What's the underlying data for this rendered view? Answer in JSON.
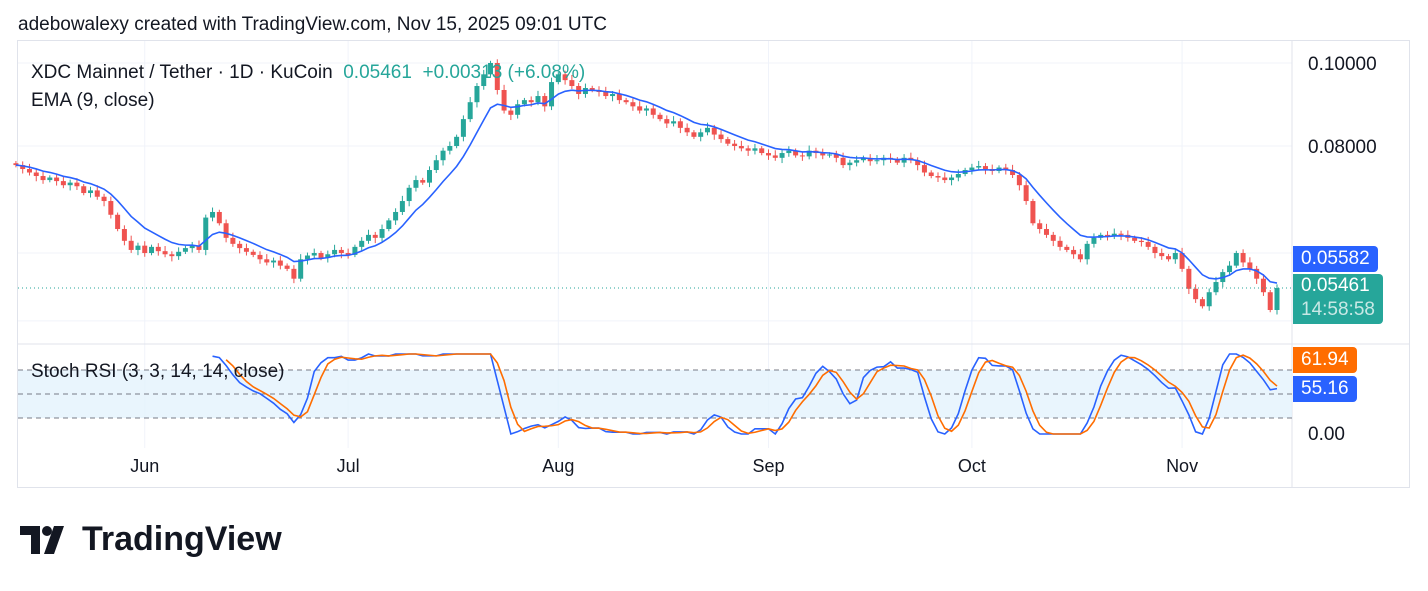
{
  "credit": "adebowalexy created with TradingView.com, Nov 15, 2025 09:01 UTC",
  "legend": {
    "symbol": "XDC Mainnet / Tether · 1D · KuCoin",
    "last": "0.05461",
    "change": "+0.00313 (+6.08%)",
    "ema": "EMA (9, close)",
    "stoch": "Stoch RSI (3, 3, 14, 14, close)"
  },
  "tags": {
    "ema": "0.05582",
    "price": "0.05461",
    "countdown": "14:58:58",
    "k": "61.94",
    "d": "55.16"
  },
  "colors": {
    "up": "#26a69a",
    "down": "#ef5350",
    "ema": "#2962ff",
    "k": "#2962ff",
    "d": "#ff6d00",
    "band": "#e3f2fd"
  },
  "logo": "TradingView",
  "chart_data": {
    "type": "candlestick",
    "start_date": "2025-05-13",
    "interval": "1D",
    "y_scale": "log",
    "price_ticks": [
      "0.10000",
      "0.08000"
    ],
    "stoch_ticks": [
      "0.00"
    ],
    "x_ticks": [
      {
        "label": "Jun",
        "date": "2025-06-01"
      },
      {
        "label": "Jul",
        "date": "2025-07-01"
      },
      {
        "label": "Aug",
        "date": "2025-08-01"
      },
      {
        "label": "Sep",
        "date": "2025-09-01"
      },
      {
        "label": "Oct",
        "date": "2025-10-01"
      },
      {
        "label": "Nov",
        "date": "2025-11-01"
      }
    ],
    "stoch_bands": [
      80,
      50,
      20
    ],
    "closes": [
      0.076,
      0.0752,
      0.0745,
      0.0738,
      0.073,
      0.0735,
      0.0728,
      0.072,
      0.0725,
      0.0718,
      0.0705,
      0.071,
      0.0698,
      0.069,
      0.0665,
      0.064,
      0.062,
      0.0605,
      0.0612,
      0.06,
      0.061,
      0.0603,
      0.0598,
      0.0595,
      0.0602,
      0.0608,
      0.0612,
      0.0605,
      0.066,
      0.067,
      0.065,
      0.0625,
      0.0615,
      0.0608,
      0.0602,
      0.0597,
      0.059,
      0.0585,
      0.0588,
      0.058,
      0.0575,
      0.056,
      0.059,
      0.0596,
      0.06,
      0.0592,
      0.0598,
      0.0605,
      0.06,
      0.0597,
      0.061,
      0.062,
      0.063,
      0.0625,
      0.064,
      0.0655,
      0.067,
      0.069,
      0.0715,
      0.073,
      0.0725,
      0.075,
      0.077,
      0.079,
      0.08,
      0.082,
      0.086,
      0.09,
      0.094,
      0.097,
      0.1,
      0.093,
      0.088,
      0.087,
      0.0895,
      0.0905,
      0.09,
      0.0915,
      0.089,
      0.095,
      0.097,
      0.0955,
      0.094,
      0.092,
      0.0935,
      0.093,
      0.0925,
      0.0915,
      0.092,
      0.0905,
      0.09,
      0.089,
      0.088,
      0.0885,
      0.087,
      0.086,
      0.085,
      0.0855,
      0.084,
      0.083,
      0.082,
      0.083,
      0.084,
      0.0825,
      0.0815,
      0.0805,
      0.08,
      0.0795,
      0.079,
      0.0795,
      0.0785,
      0.078,
      0.0775,
      0.0785,
      0.079,
      0.078,
      0.0778,
      0.079,
      0.0785,
      0.078,
      0.0782,
      0.0775,
      0.076,
      0.0765,
      0.077,
      0.0775,
      0.0768,
      0.077,
      0.0775,
      0.0772,
      0.0765,
      0.0775,
      0.077,
      0.076,
      0.0745,
      0.0738,
      0.0735,
      0.073,
      0.0735,
      0.0742,
      0.075,
      0.0755,
      0.0758,
      0.0752,
      0.0748,
      0.0755,
      0.075,
      0.074,
      0.072,
      0.069,
      0.065,
      0.064,
      0.063,
      0.062,
      0.061,
      0.0605,
      0.0598,
      0.059,
      0.0615,
      0.0625,
      0.063,
      0.0628,
      0.0632,
      0.063,
      0.0625,
      0.062,
      0.0618,
      0.061,
      0.06,
      0.0595,
      0.059,
      0.06,
      0.0575,
      0.0545,
      0.053,
      0.052,
      0.054,
      0.0555,
      0.057,
      0.058,
      0.06,
      0.0585,
      0.0575,
      0.056,
      0.054,
      0.05148,
      0.05461
    ]
  }
}
